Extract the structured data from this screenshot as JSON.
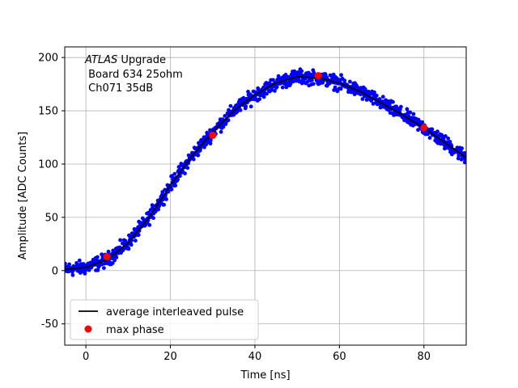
{
  "chart_data": {
    "type": "scatter",
    "xlabel": "Time [ns]",
    "ylabel": "Amplitude [ADC Counts]",
    "xlim": [
      -5,
      90
    ],
    "ylim": [
      -70,
      210
    ],
    "xticks": [
      0,
      20,
      40,
      60,
      80
    ],
    "yticks": [
      -50,
      0,
      50,
      100,
      150,
      200
    ],
    "grid": true,
    "legend_position": "lower-left",
    "annotation": {
      "experiment": "ATLAS",
      "experiment_suffix": " Upgrade",
      "line2": " Board 634 25ohm",
      "line3": " Ch071 35dB"
    },
    "series": [
      {
        "name": "average interleaved pulse",
        "kind": "line",
        "color": "#000000",
        "x": [
          -5,
          0,
          5,
          10,
          15,
          20,
          25,
          30,
          35,
          40,
          45,
          50,
          55,
          60,
          65,
          70,
          75,
          80,
          85,
          90
        ],
        "y": [
          1,
          3,
          10,
          26,
          50,
          80,
          107,
          130,
          150,
          165,
          176,
          182,
          181,
          176,
          168,
          157,
          146,
          134,
          120,
          106
        ]
      },
      {
        "name": "max phase",
        "kind": "markers",
        "color": "#ff0000",
        "x": [
          5,
          30,
          55,
          80
        ],
        "y": [
          13,
          127,
          183,
          134
        ]
      },
      {
        "kind": "scatter",
        "color": "#0000ff",
        "x_range": [
          -5,
          90
        ],
        "noise": 4,
        "note_points": "dense sampled points scattered around the average pulse"
      }
    ]
  }
}
